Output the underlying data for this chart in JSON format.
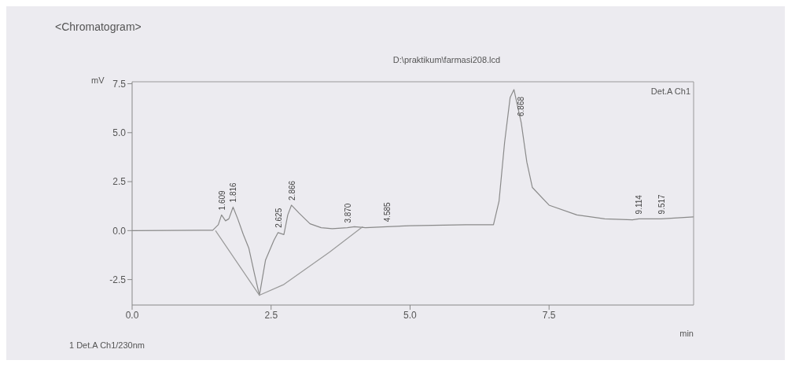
{
  "chart_data": {
    "type": "line",
    "title": "D:\\praktikum\\farmasi208.lcd",
    "xlabel": "min",
    "ylabel": "mV",
    "xlim": [
      0,
      10.1
    ],
    "xticks": [
      {
        "value": 0,
        "label": "0.0"
      },
      2.5,
      {
        "value": 5,
        "label": "5.0"
      },
      7.5
    ],
    "ylim": [
      -3.8,
      7.6
    ],
    "yticks": [
      -2.5,
      {
        "value": 0,
        "label": "0.0"
      },
      2.5,
      {
        "value": 5,
        "label": "5.0"
      },
      7.5
    ],
    "grid": false,
    "marker": "none",
    "line_style": "solid",
    "series": [
      {
        "color": "#8a8a8a",
        "x": [
          0,
          1.45,
          1.55,
          1.609,
          1.68,
          1.74,
          1.816,
          1.9,
          2.0,
          2.1,
          2.2,
          2.29,
          2.4,
          2.55,
          2.625,
          2.73,
          2.8,
          2.866,
          3.0,
          3.2,
          3.4,
          3.6,
          3.87,
          4.0,
          4.2,
          4.585,
          5.0,
          6.0,
          6.5,
          6.6,
          6.7,
          6.8,
          6.868,
          7.0,
          7.1,
          7.2,
          7.5,
          8.0,
          8.5,
          9.0,
          9.114,
          9.517,
          10.1
        ],
        "values": [
          0,
          0.02,
          0.3,
          0.8,
          0.5,
          0.6,
          1.2,
          0.6,
          -0.2,
          -0.9,
          -2.2,
          -3.3,
          -1.5,
          -0.5,
          -0.1,
          -0.2,
          0.8,
          1.3,
          0.9,
          0.35,
          0.15,
          0.1,
          0.15,
          0.2,
          0.15,
          0.2,
          0.25,
          0.3,
          0.3,
          1.5,
          4.5,
          6.8,
          7.2,
          5.5,
          3.5,
          2.2,
          1.3,
          0.8,
          0.6,
          0.55,
          0.6,
          0.6,
          0.7
        ]
      },
      {
        "color": "#9a9a9a",
        "x": [
          1.5,
          2.29,
          2.73,
          3.55,
          4.15
        ],
        "values": [
          0,
          -3.3,
          -2.75,
          -1.1,
          0.2
        ]
      }
    ],
    "annotations": [
      "<Chromatogram>",
      "Det.A Ch1",
      "1  Det.A Ch1/230nm",
      {
        "text": "1.609",
        "x": 1.609,
        "y": 0.8
      },
      {
        "text": "1.816",
        "x": 1.816,
        "y": 1.2
      },
      {
        "text": "2.625",
        "x": 2.625,
        "y": -0.1
      },
      {
        "text": "2.866",
        "x": 2.866,
        "y": 1.3
      },
      {
        "text": "3.870",
        "x": 3.87,
        "y": 0.15
      },
      {
        "text": "4.585",
        "x": 4.585,
        "y": 0.2
      },
      {
        "text": "6.868",
        "x": 6.868,
        "y": 7.2
      },
      {
        "text": "9.114",
        "x": 9.114,
        "y": 0.6
      },
      {
        "text": "9.517",
        "x": 9.517,
        "y": 0.6
      }
    ]
  }
}
